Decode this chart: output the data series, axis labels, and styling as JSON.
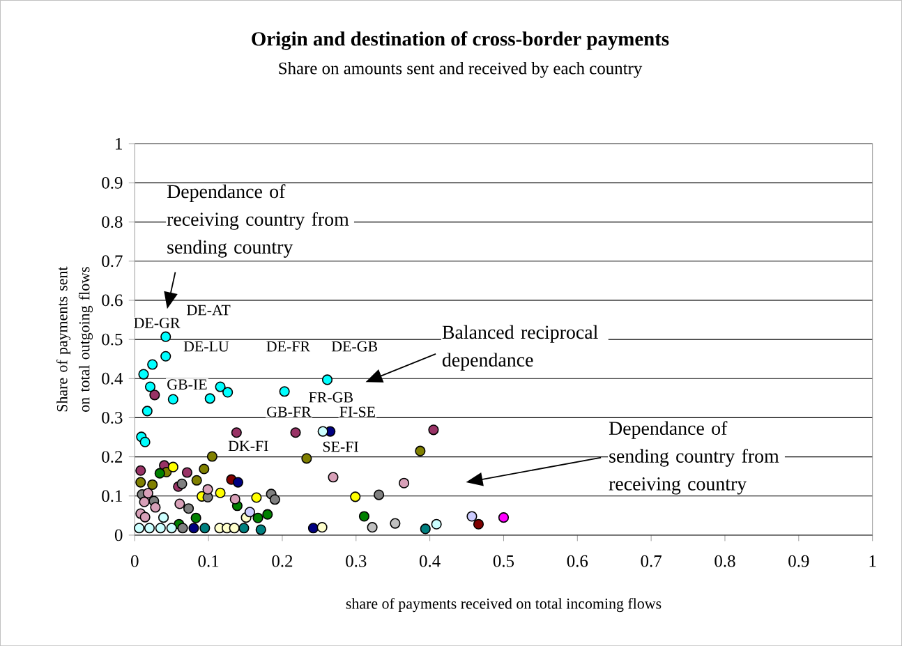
{
  "chart_data": {
    "type": "scatter",
    "title": "Origin and destination of cross-border payments",
    "subtitle": "Share on amounts sent and received by each country",
    "xlabel": "share of payments received on total incoming flows",
    "ylabel": "Share of payments sent on total outgoing flows",
    "xlim": [
      0,
      1
    ],
    "ylim": [
      0,
      1
    ],
    "xticks": [
      0,
      0.1,
      0.2,
      0.3,
      0.4,
      0.5,
      0.6,
      0.7,
      0.8,
      0.9,
      1
    ],
    "yticks": [
      0,
      0.1,
      0.2,
      0.3,
      0.4,
      0.5,
      0.6,
      0.7,
      0.8,
      0.9,
      1
    ],
    "grid": "y",
    "marker": "circle",
    "series": [
      {
        "color": "#00ffff",
        "x": [
          0.042,
          0.042,
          0.024,
          0.012,
          0.021,
          0.052,
          0.017,
          0.102,
          0.116,
          0.126,
          0.203,
          0.261,
          0.009,
          0.014
        ],
        "values": [
          0.507,
          0.457,
          0.436,
          0.411,
          0.379,
          0.347,
          0.317,
          0.349,
          0.379,
          0.365,
          0.367,
          0.397,
          0.251,
          0.238
        ]
      },
      {
        "color": "#993366",
        "x": [
          0.027,
          0.138,
          0.218,
          0.008,
          0.04,
          0.071,
          0.059,
          0.405
        ],
        "values": [
          0.358,
          0.262,
          0.262,
          0.165,
          0.178,
          0.16,
          0.124,
          0.269
        ]
      },
      {
        "color": "#808000",
        "x": [
          0.105,
          0.233,
          0.043,
          0.094,
          0.084,
          0.008,
          0.024,
          0.387
        ],
        "values": [
          0.201,
          0.196,
          0.161,
          0.169,
          0.14,
          0.135,
          0.129,
          0.215
        ]
      },
      {
        "color": "#ffff00",
        "x": [
          0.052,
          0.091,
          0.116,
          0.165,
          0.299
        ],
        "values": [
          0.174,
          0.099,
          0.108,
          0.096,
          0.098
        ]
      },
      {
        "color": "#008000",
        "x": [
          0.034,
          0.139,
          0.167,
          0.18,
          0.083,
          0.06,
          0.311
        ],
        "values": [
          0.158,
          0.075,
          0.044,
          0.053,
          0.044,
          0.028,
          0.048
        ]
      },
      {
        "color": "#808080",
        "x": [
          0.064,
          0.099,
          0.185,
          0.19,
          0.073,
          0.01,
          0.026,
          0.331,
          0.065
        ],
        "values": [
          0.131,
          0.097,
          0.105,
          0.091,
          0.068,
          0.104,
          0.087,
          0.103,
          0.018
        ]
      },
      {
        "color": "#c0c0c0",
        "x": [
          0.322,
          0.353
        ],
        "values": [
          0.02,
          0.03
        ]
      },
      {
        "color": "#d8a0b8",
        "x": [
          0.018,
          0.099,
          0.136,
          0.061,
          0.013,
          0.028,
          0.008,
          0.014,
          0.269,
          0.365
        ],
        "values": [
          0.107,
          0.117,
          0.092,
          0.08,
          0.085,
          0.071,
          0.055,
          0.046,
          0.148,
          0.133
        ]
      },
      {
        "color": "#800000",
        "x": [
          0.131,
          0.466
        ],
        "values": [
          0.142,
          0.028
        ]
      },
      {
        "color": "#000080",
        "x": [
          0.14,
          0.265,
          0.242,
          0.08
        ],
        "values": [
          0.135,
          0.265,
          0.018,
          0.018
        ]
      },
      {
        "color": "#008080",
        "x": [
          0.171,
          0.394,
          0.095,
          0.148
        ],
        "values": [
          0.014,
          0.016,
          0.018,
          0.018
        ]
      },
      {
        "color": "#ccffff",
        "x": [
          0.255,
          0.039,
          0.409,
          0.006,
          0.02,
          0.035,
          0.05
        ],
        "values": [
          0.265,
          0.045,
          0.028,
          0.018,
          0.018,
          0.018,
          0.018
        ]
      },
      {
        "color": "#ffffcc",
        "x": [
          0.151,
          0.254,
          0.115,
          0.125,
          0.135
        ],
        "values": [
          0.045,
          0.02,
          0.018,
          0.018,
          0.018
        ]
      },
      {
        "color": "#ccccff",
        "x": [
          0.156,
          0.457
        ],
        "values": [
          0.059,
          0.048
        ]
      },
      {
        "color": "#ff00ff",
        "x": [
          0.5
        ],
        "values": [
          0.045
        ]
      }
    ],
    "annotations": [
      "Dependance of receiving country from sending country",
      "Balanced reciprocal dependance",
      "Dependance of sending country from receiving country",
      "DE-AT",
      "DE-GR",
      "DE-LU",
      "DE-FR",
      "DE-GB",
      "GB-IE",
      "FR-GB",
      "GB-FR",
      "FI-SE",
      "DK-FI",
      "SE-FI"
    ]
  }
}
